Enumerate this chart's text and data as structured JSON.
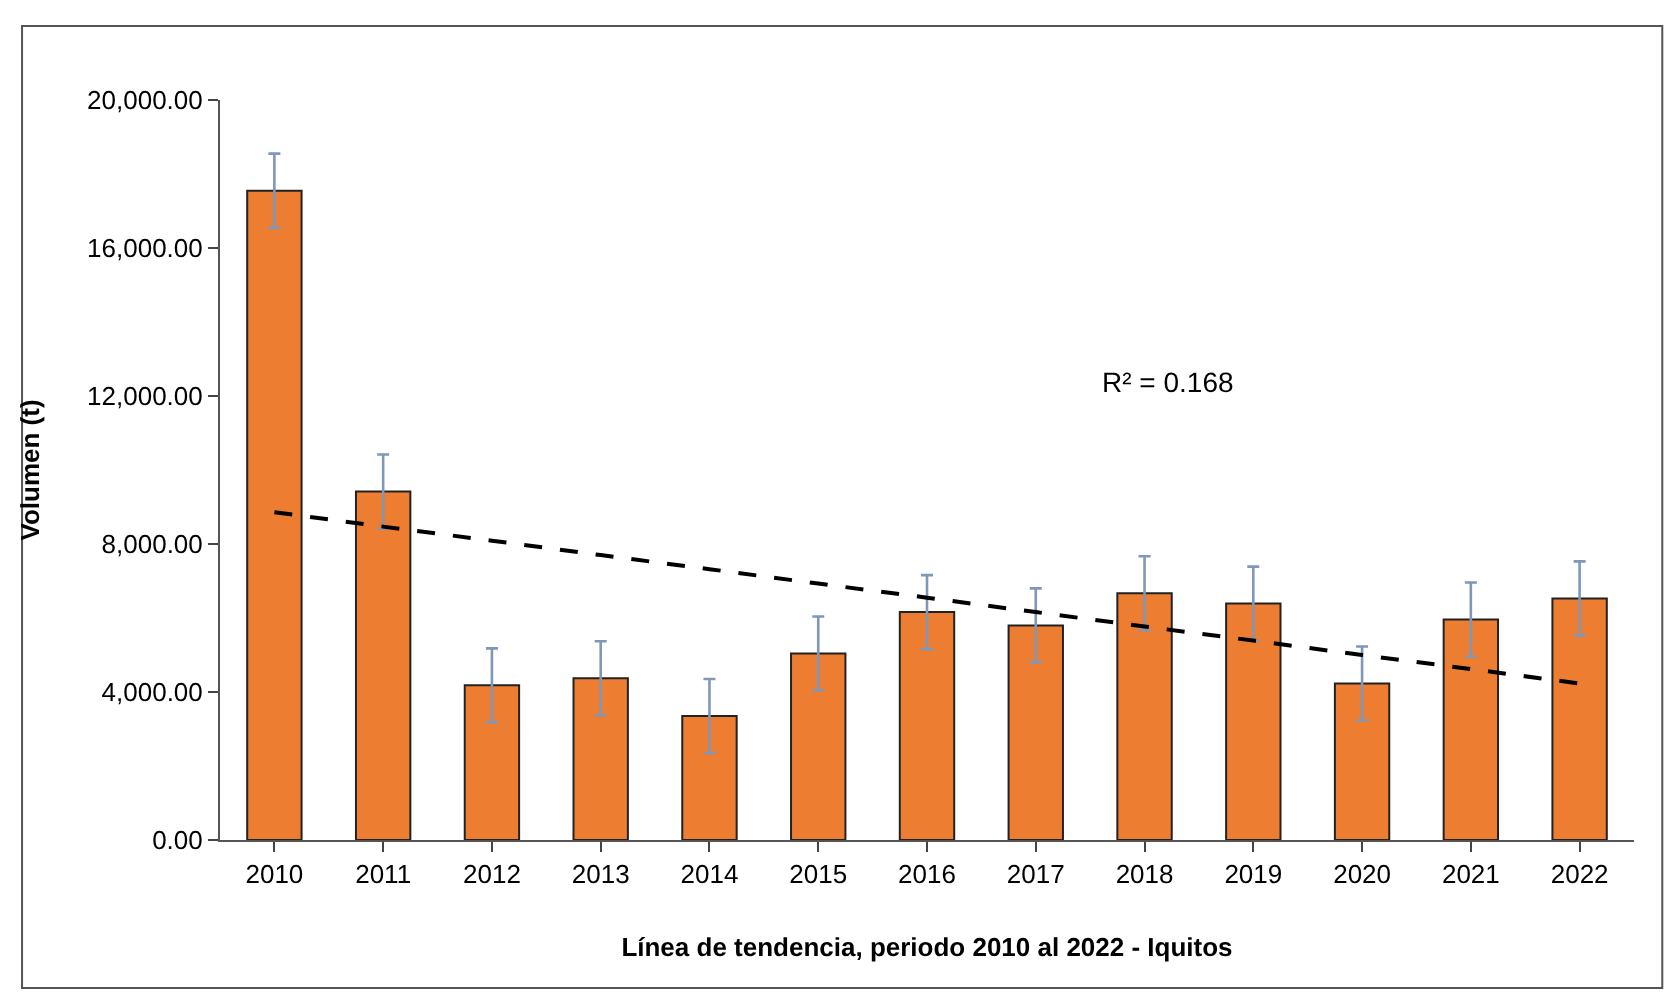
{
  "chart_data": {
    "type": "bar",
    "xlabel": "Línea de tendencia, periodo 2010 al 2022 - Iquitos",
    "ylabel": "Volumen (t)",
    "categories": [
      "2010",
      "2011",
      "2012",
      "2013",
      "2014",
      "2015",
      "2016",
      "2017",
      "2018",
      "2019",
      "2020",
      "2021",
      "2022"
    ],
    "series": [
      {
        "color": "#ed7d31",
        "values": [
          17550,
          9420,
          4180,
          4370,
          3350,
          5040,
          6160,
          5800,
          6670,
          6390,
          4230,
          5960,
          6530
        ],
        "errors": [
          1000,
          1000,
          1000,
          1000,
          1000,
          1000,
          1000,
          1000,
          1000,
          1000,
          1000,
          1000,
          1000
        ]
      },
      {
        "type": "line",
        "color": "#000000",
        "line_style": "dashed",
        "values": [
          8860,
          8470,
          8090,
          7700,
          7320,
          6930,
          6550,
          6160,
          5770,
          5390,
          5000,
          4620,
          4230
        ]
      }
    ],
    "ylim": [
      0,
      20000
    ],
    "yticks": [
      {
        "value": 0,
        "label": "0.00"
      },
      {
        "value": 4000,
        "label": "4,000.00"
      },
      {
        "value": 8000,
        "label": "8,000.00"
      },
      {
        "value": 12000,
        "label": "12,000.00"
      },
      {
        "value": 16000,
        "label": "16,000.00"
      },
      {
        "value": 20000,
        "label": "20,000.00"
      }
    ],
    "annotations": [
      "R² = 0.168"
    ]
  }
}
